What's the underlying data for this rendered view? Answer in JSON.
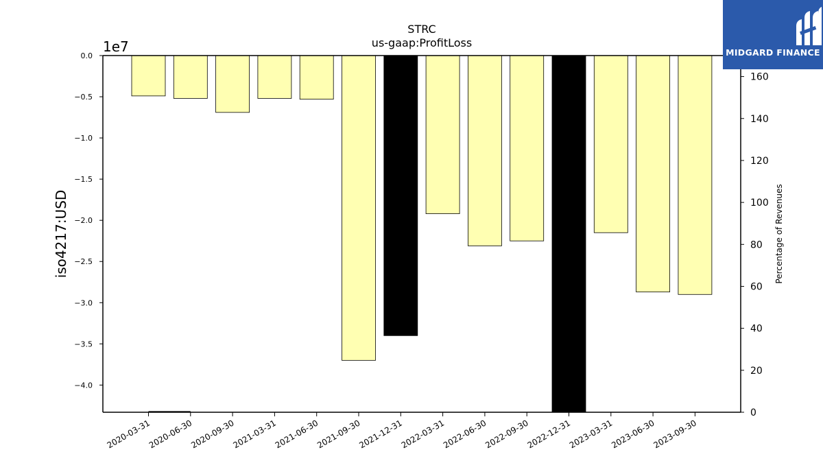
{
  "chart_data": {
    "type": "bar",
    "title": "STRC",
    "subtitle": "us-gaap:ProfitLoss",
    "ylabel": "iso4217:USD",
    "y_offset_text": "1e7",
    "y2label": "Percentage of Revenues",
    "categories": [
      "2020-03-31",
      "2020-06-30",
      "2020-09-30",
      "2021-03-31",
      "2021-06-30",
      "2021-09-30",
      "2021-12-31",
      "2022-03-31",
      "2022-06-30",
      "2022-09-30",
      "2022-12-31",
      "2023-03-31",
      "2023-06-30",
      "2023-09-30"
    ],
    "values": [
      -4900000,
      -5200000,
      -6900000,
      -5200000,
      -5300000,
      -37000000,
      -34000000,
      -19200000,
      -23100000,
      -22500000,
      -43300000,
      -21500000,
      -28700000,
      -29000000
    ],
    "bar_colors": [
      "#ffffb2",
      "#ffffb2",
      "#ffffb2",
      "#ffffb2",
      "#ffffb2",
      "#ffffb2",
      "#000000",
      "#ffffb2",
      "#ffffb2",
      "#ffffb2",
      "#000000",
      "#ffffb2",
      "#ffffb2",
      "#ffffb2"
    ],
    "ylim": [
      -43300000,
      0
    ],
    "yticks": [
      0.0,
      -0.5,
      -1.0,
      -1.5,
      -2.0,
      -2.5,
      -3.0,
      -3.5,
      -4.0
    ],
    "y2lim": [
      0,
      170
    ],
    "y2ticks": [
      0,
      20,
      40,
      60,
      80,
      100,
      120,
      140,
      160
    ],
    "pct_line": {
      "x_range": [
        "2020-03-31",
        "2020-06-30"
      ],
      "value": 0.3
    }
  },
  "logo": {
    "text": "MIDGARD FINANCE",
    "icon": "midgard-logo-icon"
  }
}
